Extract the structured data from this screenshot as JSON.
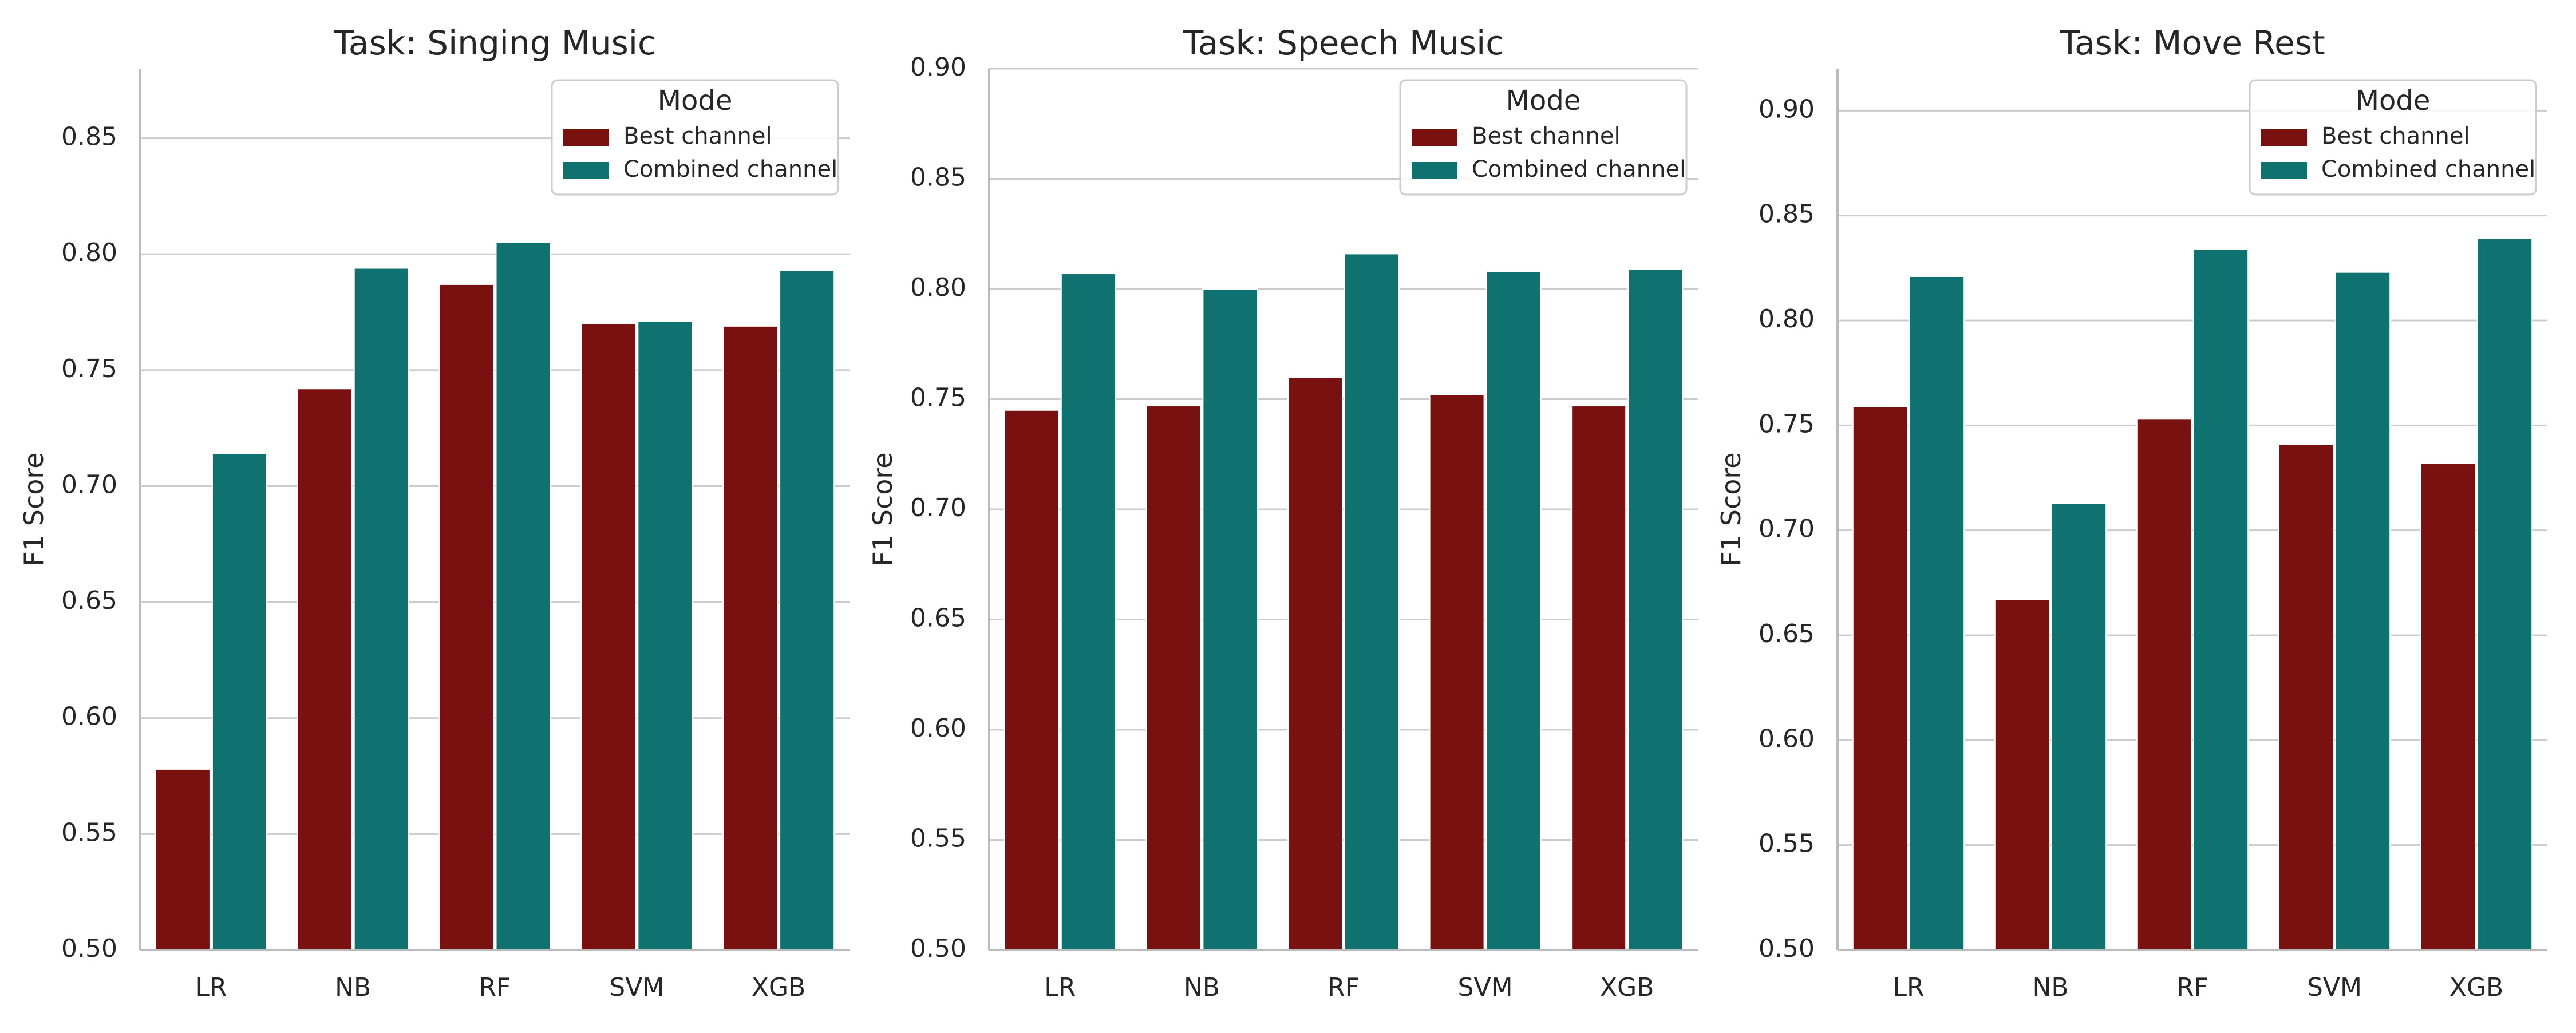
{
  "colors": {
    "best": "#7a1111",
    "combined": "#107270",
    "grid": "#cccccc",
    "axis": "#bbbbbb"
  },
  "legend": {
    "title": "Mode",
    "placement": "top-right",
    "entries": [
      "Best channel",
      "Combined channel"
    ]
  },
  "chart_data": [
    {
      "type": "bar",
      "title": "Task: Singing Music",
      "ylabel": "F1 Score",
      "xlabel": "",
      "ylim": [
        0.5,
        0.88
      ],
      "yticks": [
        0.5,
        0.55,
        0.6,
        0.65,
        0.7,
        0.75,
        0.8,
        0.85
      ],
      "grid": true,
      "categories": [
        "LR",
        "NB",
        "RF",
        "SVM",
        "XGB"
      ],
      "series": [
        {
          "name": "Best channel",
          "values": [
            0.578,
            0.742,
            0.787,
            0.77,
            0.769
          ]
        },
        {
          "name": "Combined channel",
          "values": [
            0.714,
            0.794,
            0.805,
            0.771,
            0.793
          ]
        }
      ]
    },
    {
      "type": "bar",
      "title": "Task: Speech Music",
      "ylabel": "F1 Score",
      "xlabel": "",
      "ylim": [
        0.5,
        0.9
      ],
      "yticks": [
        0.5,
        0.55,
        0.6,
        0.65,
        0.7,
        0.75,
        0.8,
        0.85,
        0.9
      ],
      "grid": true,
      "categories": [
        "LR",
        "NB",
        "RF",
        "SVM",
        "XGB"
      ],
      "series": [
        {
          "name": "Best channel",
          "values": [
            0.745,
            0.747,
            0.76,
            0.752,
            0.747
          ]
        },
        {
          "name": "Combined channel",
          "values": [
            0.807,
            0.8,
            0.816,
            0.808,
            0.809
          ]
        }
      ]
    },
    {
      "type": "bar",
      "title": "Task: Move Rest",
      "ylabel": "F1 Score",
      "xlabel": "",
      "ylim": [
        0.5,
        0.92
      ],
      "yticks": [
        0.5,
        0.55,
        0.6,
        0.65,
        0.7,
        0.75,
        0.8,
        0.85,
        0.9
      ],
      "grid": true,
      "categories": [
        "LR",
        "NB",
        "RF",
        "SVM",
        "XGB"
      ],
      "series": [
        {
          "name": "Best channel",
          "values": [
            0.759,
            0.667,
            0.753,
            0.741,
            0.732
          ]
        },
        {
          "name": "Combined channel",
          "values": [
            0.821,
            0.713,
            0.834,
            0.823,
            0.839
          ]
        }
      ]
    }
  ]
}
